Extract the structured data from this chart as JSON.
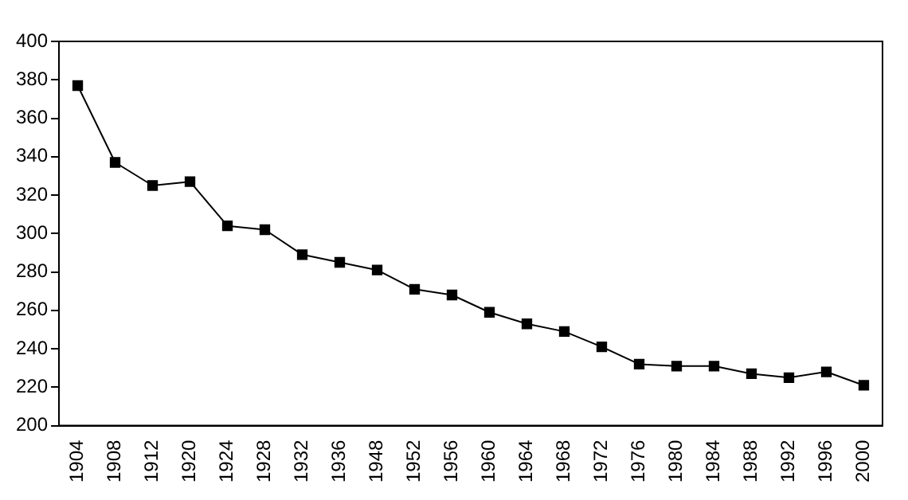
{
  "chart_data": {
    "type": "line",
    "categories": [
      "1904",
      "1908",
      "1912",
      "1920",
      "1924",
      "1928",
      "1932",
      "1936",
      "1948",
      "1952",
      "1956",
      "1960",
      "1964",
      "1968",
      "1972",
      "1976",
      "1980",
      "1984",
      "1988",
      "1992",
      "1996",
      "2000"
    ],
    "values": [
      377,
      337,
      325,
      327,
      304,
      302,
      289,
      285,
      281,
      271,
      268,
      259,
      253,
      249,
      241,
      232,
      231,
      231,
      227,
      225,
      228,
      221
    ],
    "color": "#000000",
    "marker": "square",
    "line_style": "solid",
    "ylim": [
      200,
      400
    ],
    "yticks": [
      200,
      220,
      240,
      260,
      280,
      300,
      320,
      340,
      360,
      380,
      400
    ],
    "grid": false,
    "legend": false
  }
}
